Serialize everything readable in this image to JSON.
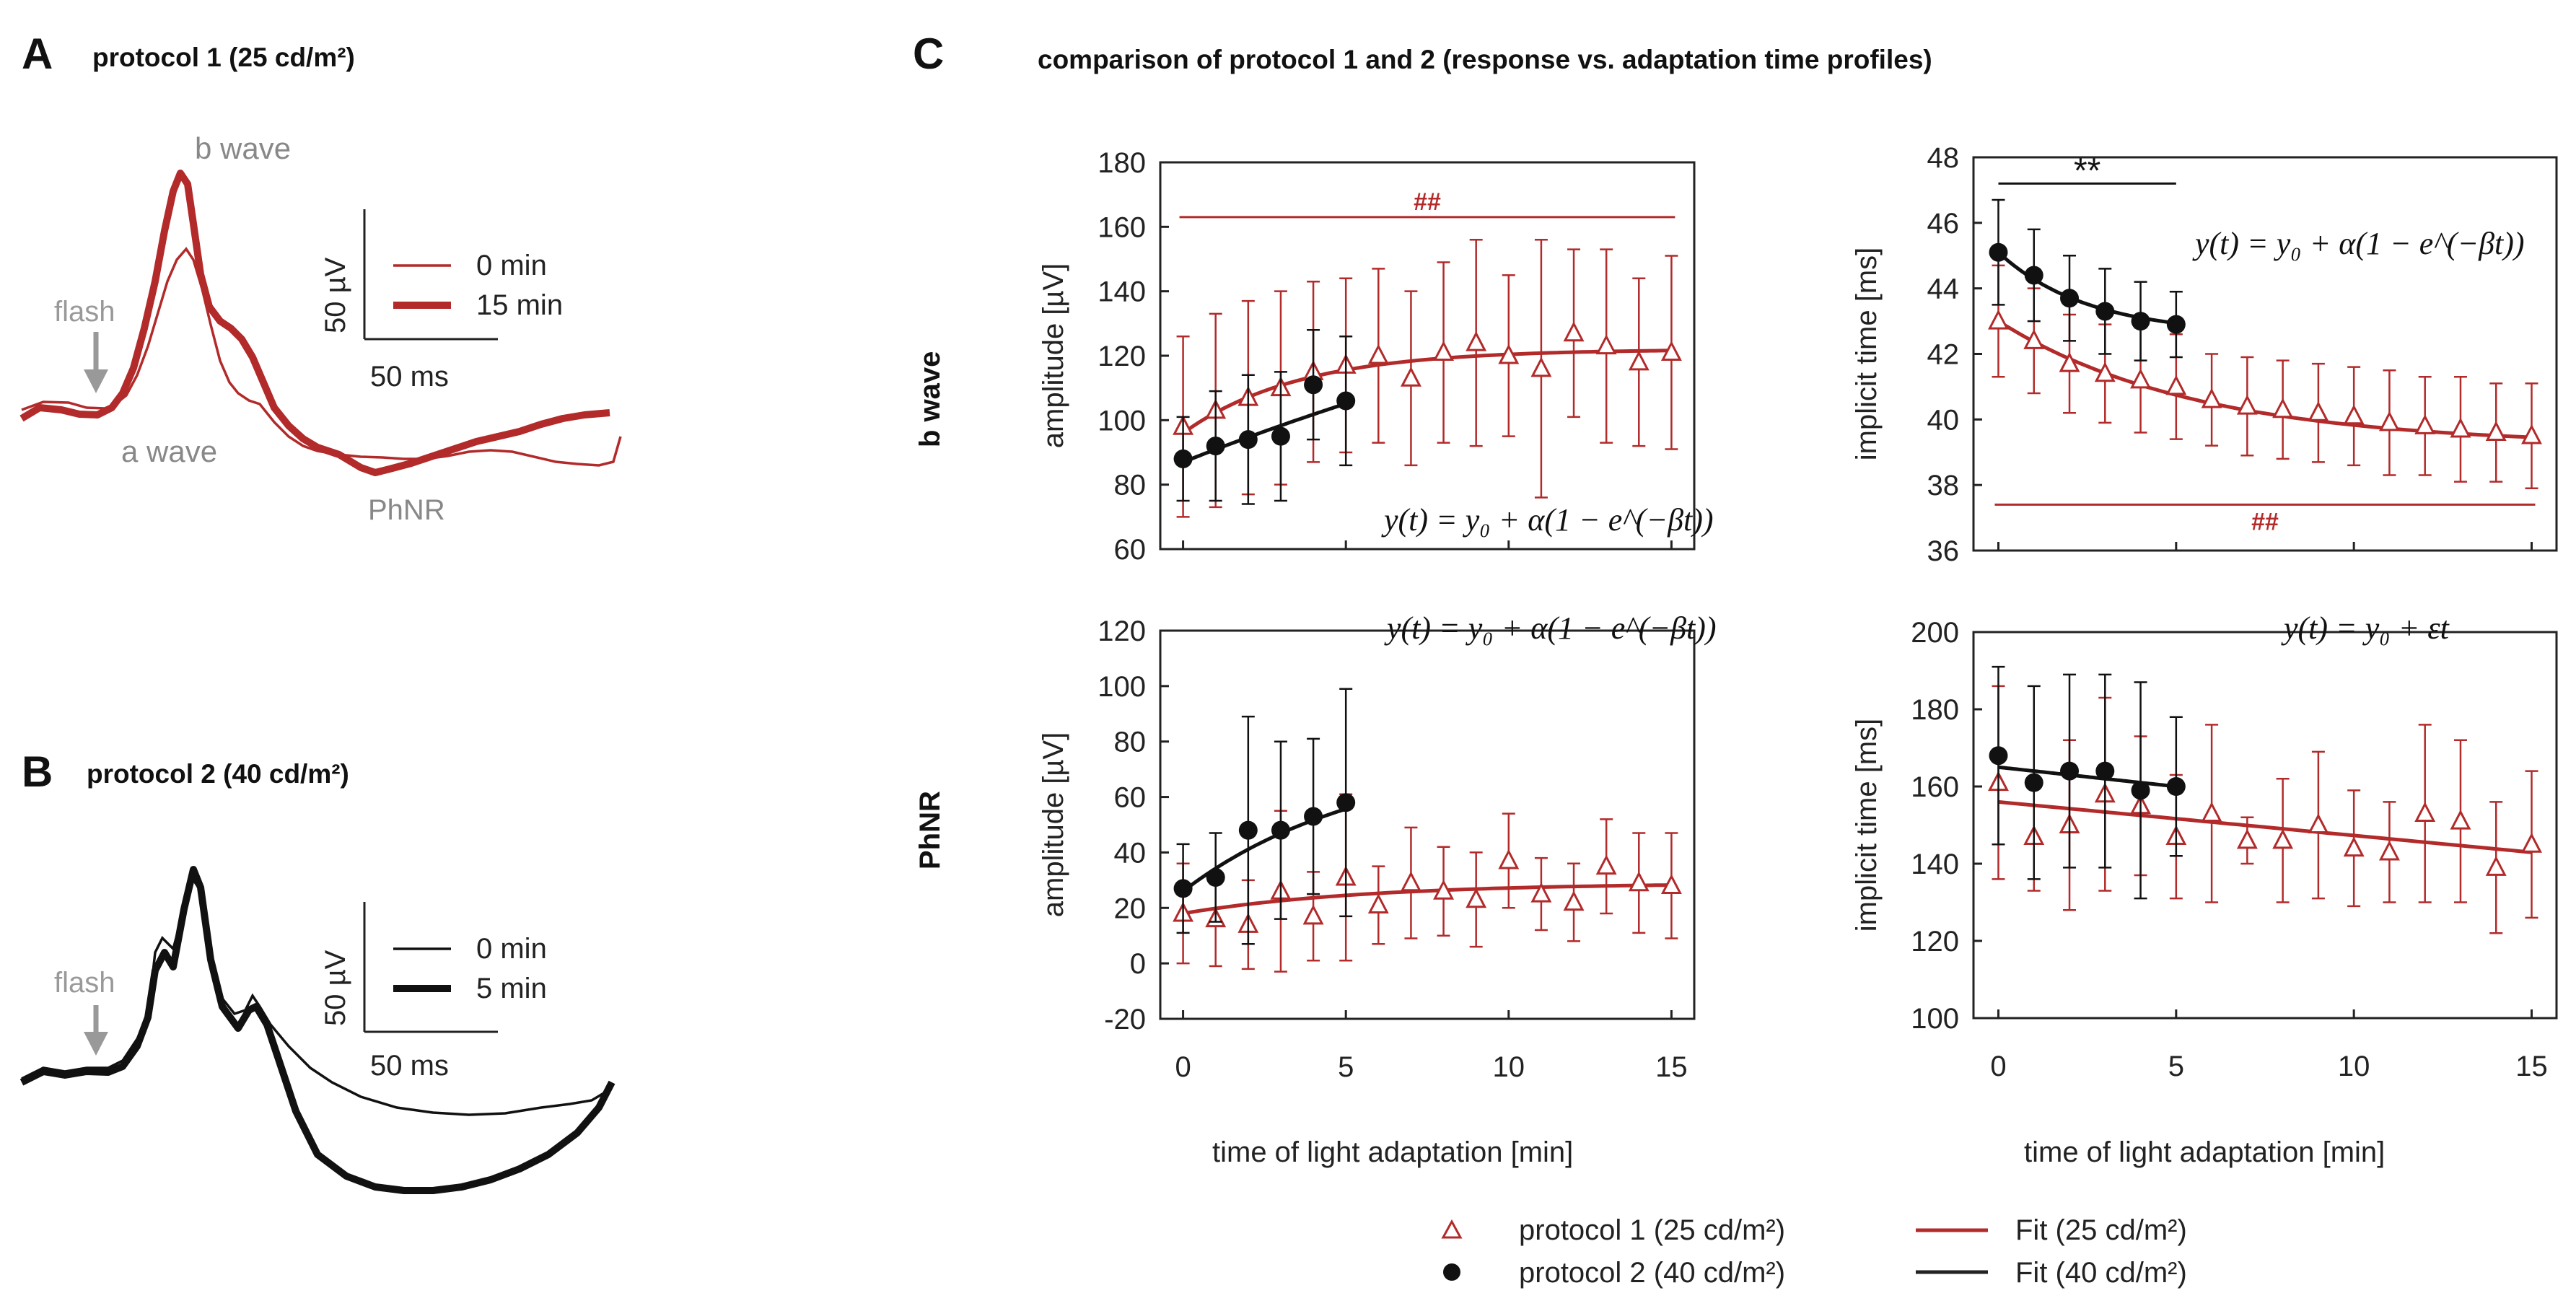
{
  "colors": {
    "red": "#b22a2a",
    "black": "#111111",
    "gray": "#9a9a9a"
  },
  "panelA": {
    "letter": "A",
    "title": "protocol 1 (25 cd/m²)",
    "bwave": "b wave",
    "awave": "a wave",
    "phnr": "PhNR",
    "flash": "flash",
    "scale_v": "50 µV",
    "scale_t": "50 ms",
    "legend": [
      "0 min",
      "15 min"
    ]
  },
  "panelB": {
    "letter": "B",
    "title": "protocol 2 (40 cd/m²)",
    "flash": "flash",
    "scale_v": "50 µV",
    "scale_t": "50 ms",
    "legend": [
      "0 min",
      "5 min"
    ]
  },
  "panelC": {
    "letter": "C",
    "title": "comparison of protocol 1 and 2 (response vs. adaptation time profiles)",
    "row_labels": [
      "b wave",
      "PhNR"
    ],
    "xlabel": "time of light adaptation [min]",
    "legend": {
      "p1": "protocol 1 (25 cd/m²)",
      "p2": "protocol 2 (40 cd/m²)",
      "fit1": "Fit (25 cd/m²)",
      "fit2": "Fit (40 cd/m²)"
    }
  },
  "chart_data": [
    {
      "id": "bwave_amp",
      "type": "scatter",
      "ylabel": "amplitude [µV]",
      "xlabel": "time of light adaptation [min]",
      "xlim": [
        -0.7,
        15.7
      ],
      "ylim": [
        60,
        180
      ],
      "yticks": [
        60,
        80,
        100,
        120,
        140,
        160,
        180
      ],
      "xticks": [
        0,
        5,
        10,
        15
      ],
      "equation": "y(t) = y₀ + α(1 − e^(−βt))",
      "annotation": "##",
      "annotation_y": 163,
      "series": [
        {
          "name": "protocol 1 (25 cd/m²)",
          "x": [
            0,
            1,
            2,
            3,
            4,
            5,
            6,
            7,
            8,
            9,
            10,
            11,
            12,
            13,
            14,
            15
          ],
          "y": [
            98,
            103,
            107,
            110,
            115,
            117,
            120,
            113,
            121,
            124,
            120,
            116,
            127,
            123,
            118,
            121
          ],
          "err": [
            28,
            30,
            30,
            30,
            28,
            27,
            27,
            27,
            28,
            32,
            25,
            40,
            26,
            30,
            26,
            30
          ]
        },
        {
          "name": "protocol 2 (40 cd/m²)",
          "x": [
            0,
            1,
            2,
            3,
            4,
            5
          ],
          "y": [
            88,
            92,
            94,
            95,
            111,
            106
          ],
          "err": [
            13,
            17,
            20,
            20,
            17,
            20
          ]
        }
      ],
      "fits": [
        {
          "name": "Fit (25 cd/m²)",
          "kind": "exp",
          "y0": 96,
          "alpha": 26,
          "beta": 0.28,
          "t": [
            0,
            15
          ]
        },
        {
          "name": "Fit (40 cd/m²)",
          "kind": "exp",
          "y0": 87,
          "alpha": 100,
          "beta": 0.04,
          "t": [
            0,
            5
          ]
        }
      ]
    },
    {
      "id": "bwave_it",
      "type": "scatter",
      "ylabel": "implicit time [ms]",
      "xlabel": "time of light adaptation [min]",
      "xlim": [
        -0.7,
        15.7
      ],
      "ylim": [
        36,
        48
      ],
      "yticks": [
        36,
        38,
        40,
        42,
        44,
        46,
        48
      ],
      "xticks": [
        0,
        5,
        10,
        15
      ],
      "equation": "y(t) = y₀ + α(1 − e^(−βt))",
      "annotation": "##",
      "annotation_y": 37.4,
      "sig": "**",
      "sig_y": 47.2,
      "sig_x": [
        0,
        5
      ],
      "series": [
        {
          "name": "protocol 1 (25 cd/m²)",
          "x": [
            0,
            1,
            2,
            3,
            4,
            5,
            6,
            7,
            8,
            9,
            10,
            11,
            12,
            13,
            14,
            15
          ],
          "y": [
            43,
            42.4,
            41.7,
            41.4,
            41.2,
            41,
            40.6,
            40.4,
            40.3,
            40.2,
            40.1,
            39.9,
            39.8,
            39.7,
            39.6,
            39.5
          ],
          "err": [
            1.7,
            1.6,
            1.5,
            1.5,
            1.6,
            1.6,
            1.4,
            1.5,
            1.5,
            1.5,
            1.5,
            1.6,
            1.5,
            1.6,
            1.5,
            1.6
          ]
        },
        {
          "name": "protocol 2 (40 cd/m²)",
          "x": [
            0,
            1,
            2,
            3,
            4,
            5
          ],
          "y": [
            45.1,
            44.4,
            43.7,
            43.3,
            43,
            42.9
          ],
          "err": [
            1.6,
            1.4,
            1.3,
            1.3,
            1.2,
            1.0
          ]
        }
      ],
      "fits": [
        {
          "name": "Fit (25 cd/m²)",
          "kind": "exp",
          "y0": 43,
          "alpha": -3.8,
          "beta": 0.18,
          "t": [
            0,
            15
          ]
        },
        {
          "name": "Fit (40 cd/m²)",
          "kind": "exp",
          "y0": 45.1,
          "alpha": -2.5,
          "beta": 0.4,
          "t": [
            0,
            5
          ]
        }
      ]
    },
    {
      "id": "phnr_amp",
      "type": "scatter",
      "ylabel": "amplitude [µV]",
      "xlabel": "time of light adaptation [min]",
      "xlim": [
        -0.7,
        15.7
      ],
      "ylim": [
        -20,
        120
      ],
      "yticks": [
        -20,
        0,
        20,
        40,
        60,
        80,
        100,
        120
      ],
      "xticks": [
        0,
        5,
        10,
        15
      ],
      "equation": "y(t) = y₀ + α(1 − e^(−βt))",
      "series": [
        {
          "name": "protocol 1 (25 cd/m²)",
          "x": [
            0,
            1,
            2,
            3,
            4,
            5,
            6,
            7,
            8,
            9,
            10,
            11,
            12,
            13,
            14,
            15
          ],
          "y": [
            18,
            16,
            14,
            26,
            17,
            31,
            21,
            29,
            26,
            23,
            37,
            25,
            22,
            35,
            29,
            28
          ],
          "err": [
            18,
            17,
            16,
            29,
            16,
            30,
            14,
            20,
            16,
            17,
            17,
            13,
            14,
            17,
            18,
            19
          ]
        },
        {
          "name": "protocol 2 (40 cd/m²)",
          "x": [
            0,
            1,
            2,
            3,
            4,
            5
          ],
          "y": [
            27,
            31,
            48,
            48,
            53,
            58
          ],
          "err": [
            16,
            16,
            41,
            32,
            28,
            41
          ]
        }
      ],
      "fits": [
        {
          "name": "Fit (25 cd/m²)",
          "kind": "exp",
          "y0": 18,
          "alpha": 11,
          "beta": 0.18,
          "t": [
            0,
            15
          ]
        },
        {
          "name": "Fit (40 cd/m²)",
          "kind": "exp",
          "y0": 26,
          "alpha": 50,
          "beta": 0.18,
          "t": [
            0,
            5
          ]
        }
      ]
    },
    {
      "id": "phnr_it",
      "type": "scatter",
      "ylabel": "implicit time [ms]",
      "xlabel": "time of light adaptation [min]",
      "xlim": [
        -0.7,
        15.7
      ],
      "ylim": [
        100,
        200
      ],
      "yticks": [
        100,
        120,
        140,
        160,
        180,
        200
      ],
      "xticks": [
        0,
        5,
        10,
        15
      ],
      "equation": "y(t) = y₀ + εt",
      "series": [
        {
          "name": "protocol 1 (25 cd/m²)",
          "x": [
            0,
            1,
            2,
            3,
            4,
            5,
            6,
            7,
            8,
            9,
            10,
            11,
            12,
            13,
            14,
            15
          ],
          "y": [
            161,
            147,
            150,
            158,
            155,
            147,
            153,
            146,
            146,
            150,
            144,
            143,
            153,
            151,
            139,
            145
          ],
          "err": [
            25,
            14,
            22,
            25,
            18,
            16,
            23,
            6,
            16,
            19,
            15,
            13,
            23,
            21,
            17,
            19
          ]
        },
        {
          "name": "protocol 2 (40 cd/m²)",
          "x": [
            0,
            1,
            2,
            3,
            4,
            5
          ],
          "y": [
            168,
            161,
            164,
            164,
            159,
            160
          ],
          "err": [
            23,
            25,
            25,
            25,
            28,
            18
          ]
        }
      ],
      "fits": [
        {
          "name": "Fit (25 cd/m²)",
          "kind": "lin",
          "y0": 156,
          "slope": -0.87,
          "t": [
            0,
            15
          ]
        },
        {
          "name": "Fit (40 cd/m²)",
          "kind": "lin",
          "y0": 165,
          "slope": -1.0,
          "t": [
            0,
            5
          ]
        }
      ]
    }
  ]
}
